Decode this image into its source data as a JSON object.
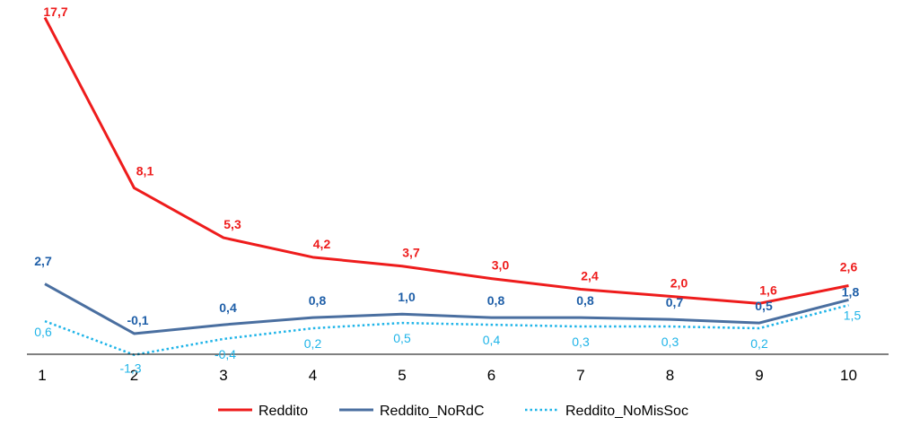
{
  "chart_data": {
    "type": "line",
    "title": "",
    "xlabel": "",
    "ylabel": "",
    "x": [
      "1",
      "2",
      "3",
      "4",
      "5",
      "6",
      "7",
      "8",
      "9",
      "10"
    ],
    "ylim": [
      -2,
      18
    ],
    "grid": false,
    "legend_position": "bottom",
    "series": [
      {
        "name": "Reddito",
        "color": "#ee1c1c",
        "style": "solid",
        "values": [
          17.7,
          8.1,
          5.3,
          4.2,
          3.7,
          3.0,
          2.4,
          2.0,
          1.6,
          2.6
        ],
        "labels": [
          "17,7",
          "8,1",
          "5,3",
          "4,2",
          "3,7",
          "3,0",
          "2,4",
          "2,0",
          "1,6",
          "2,6"
        ]
      },
      {
        "name": "Reddito_NoRdC",
        "color": "#4a6fa0",
        "label_color": "#1f5fa8",
        "style": "solid",
        "values": [
          2.7,
          -0.1,
          0.4,
          0.8,
          1.0,
          0.8,
          0.8,
          0.7,
          0.5,
          1.8
        ],
        "labels": [
          "2,7",
          "-0,1",
          "0,4",
          "0,8",
          "1,0",
          "0,8",
          "0,8",
          "0,7",
          "0,5",
          "1,8"
        ]
      },
      {
        "name": "Reddito_NoMisSoc",
        "color": "#1fb4e8",
        "style": "dotted",
        "values": [
          0.6,
          -1.3,
          -0.4,
          0.2,
          0.5,
          0.4,
          0.3,
          0.3,
          0.2,
          1.5
        ],
        "labels": [
          "0,6",
          "-1,3",
          "-0,4",
          "0,2",
          "0,5",
          "0,4",
          "0,3",
          "0,3",
          "0,2",
          "1,5"
        ]
      }
    ]
  }
}
